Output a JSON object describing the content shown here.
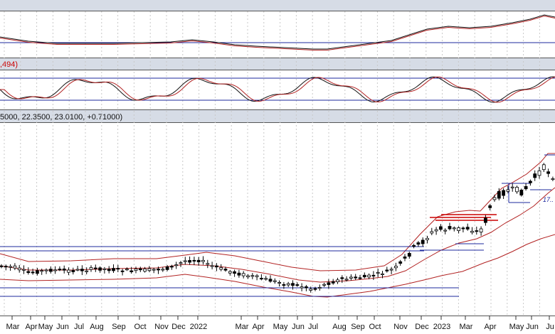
{
  "colors": {
    "header_bg": "#d6dce6",
    "grid": "#c8c8c8",
    "candle_up_fill": "#ffffff",
    "candle_down_fill": "#000000",
    "ma": "#b22222",
    "band": "#b22222",
    "trendline": "#1e2a9e",
    "macd_line": "#111111",
    "macd_signal": "#b22222",
    "stoch_k": "#111111",
    "stoch_d": "#b22222",
    "resistance": "#cc0000",
    "header_red_text": "#cc0000"
  },
  "panels": {
    "stoch_header": ",494)",
    "price_header": "5000, 22.3500, 23.0100, +0.71000)"
  },
  "chart_data": {
    "type": "candlestick",
    "months": [
      "Mar",
      "Apr",
      "May",
      "Jun",
      "Jul",
      "Aug",
      "Sep",
      "Oct",
      "Nov",
      "Dec",
      "2022",
      "Mar",
      "Apr",
      "May",
      "Jun",
      "Jul",
      "Aug",
      "Sep",
      "Oct",
      "Nov",
      "Dec",
      "2023",
      "Mar",
      "Apr",
      "May",
      "Jun",
      "Ju"
    ],
    "ohlc_header": {
      "close": 23.01,
      "change": 0.71,
      "partial_values": [
        "…5000",
        "22.3500"
      ]
    },
    "annotations": [
      "17.."
    ],
    "indicators": [
      "MACD",
      "Stochastic",
      "Bollinger Bands"
    ]
  }
}
